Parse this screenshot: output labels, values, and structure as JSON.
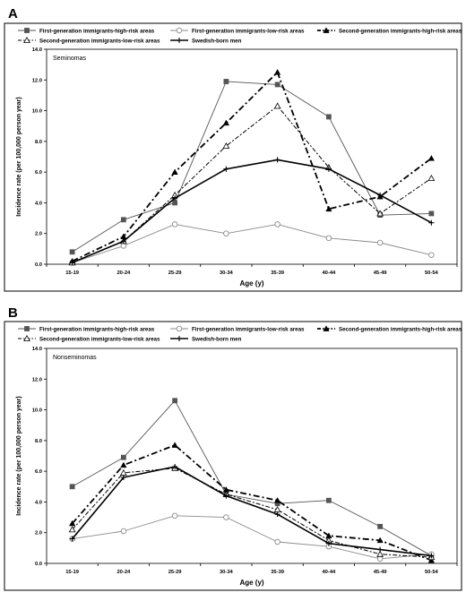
{
  "chart_data": [
    {
      "panel_letter": "A",
      "type": "line",
      "title": "Seminomas",
      "xlabel": "Age (y)",
      "ylabel": "Incidence rate (per 100,000 person year)",
      "ylim": [
        0,
        14
      ],
      "yticks": [
        "0.0",
        "2.0",
        "4.0",
        "6.0",
        "8.0",
        "10.0",
        "12.0",
        "14.0"
      ],
      "categories": [
        "15-19",
        "20-24",
        "25-29",
        "30-34",
        "35-39",
        "40-44",
        "45-49",
        "50-54"
      ],
      "grid": false,
      "legend_position": "top",
      "series": [
        {
          "name": "First-generation immigrants-high-risk areas",
          "marker": "square-filled",
          "dash": "solid-thin",
          "values": [
            0.8,
            2.9,
            4.0,
            11.9,
            11.7,
            9.6,
            3.2,
            3.3
          ]
        },
        {
          "name": "First-generation immigrants-low-risk areas",
          "marker": "circle-open",
          "dash": "solid-thin",
          "values": [
            0.1,
            1.2,
            2.6,
            2.0,
            2.6,
            1.7,
            1.4,
            0.6
          ]
        },
        {
          "name": "Second-generation immigrants-high-risk areas",
          "marker": "triangle-filled",
          "dash": "dash-dot",
          "values": [
            0.2,
            1.8,
            6.0,
            9.2,
            12.5,
            3.6,
            4.4,
            6.9
          ]
        },
        {
          "name": "Second-generation immigrants-low-risk areas",
          "marker": "triangle-open",
          "dash": "dash-dot-thin",
          "values": [
            0.1,
            1.5,
            4.5,
            7.7,
            10.3,
            6.3,
            3.3,
            5.6
          ]
        },
        {
          "name": "Swedish-born men",
          "marker": "plus",
          "dash": "solid-thick",
          "values": [
            0.1,
            1.5,
            4.3,
            6.2,
            6.8,
            6.2,
            4.5,
            2.7
          ]
        }
      ]
    },
    {
      "panel_letter": "B",
      "type": "line",
      "title": "Nonseminomas",
      "xlabel": "Age (y)",
      "ylabel": "Incidence rate (per 100,000 person year)",
      "ylim": [
        0,
        14
      ],
      "yticks": [
        "0.0",
        "2.0",
        "4.0",
        "6.0",
        "8.0",
        "10.0",
        "12.0",
        "14.0"
      ],
      "categories": [
        "15-19",
        "20-24",
        "25-29",
        "30-34",
        "35-39",
        "40-44",
        "45-49",
        "50-54"
      ],
      "grid": false,
      "legend_position": "top",
      "series": [
        {
          "name": "First-generation immigrants-high-risk areas",
          "marker": "square-filled",
          "dash": "solid-thin",
          "values": [
            5.0,
            6.9,
            10.6,
            4.5,
            3.9,
            4.1,
            2.4,
            0.5
          ]
        },
        {
          "name": "First-generation immigrants-low-risk areas",
          "marker": "circle-open",
          "dash": "solid-thin",
          "values": [
            1.6,
            2.1,
            3.1,
            3.0,
            1.4,
            1.1,
            0.3,
            0.6
          ]
        },
        {
          "name": "Second-generation immigrants-high-risk areas",
          "marker": "triangle-filled",
          "dash": "dash-dot",
          "values": [
            2.6,
            6.4,
            7.7,
            4.8,
            4.1,
            1.8,
            1.5,
            0.2
          ]
        },
        {
          "name": "Second-generation immigrants-low-risk areas",
          "marker": "triangle-open",
          "dash": "dash-dot-thin",
          "values": [
            2.2,
            5.9,
            6.2,
            4.5,
            3.5,
            1.5,
            0.6,
            0.4
          ]
        },
        {
          "name": "Swedish-born men",
          "marker": "plus",
          "dash": "solid-thick",
          "values": [
            1.6,
            5.6,
            6.3,
            4.4,
            3.2,
            1.3,
            0.9,
            0.5
          ]
        }
      ]
    }
  ]
}
